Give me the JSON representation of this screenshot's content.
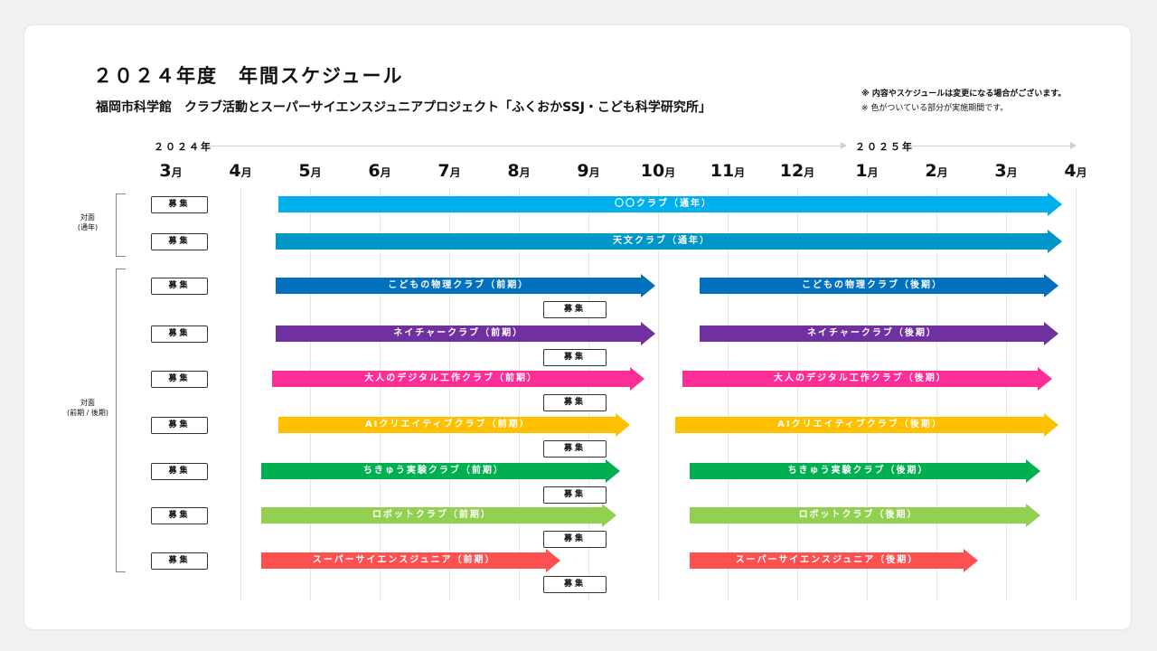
{
  "title": "２０２４年度　年間スケジュール",
  "subtitle": "福岡市科学館　クラブ活動とスーパーサイエンスジュニアプロジェクト「ふくおかSSJ・こども科学研究所」",
  "notes": [
    "※ 内容やスケジュールは変更になる場合がございます。",
    "※ 色がついている部分が実施期間です。"
  ],
  "years": [
    "２０２４年",
    "２０２５年"
  ],
  "months": [
    {
      "num": "3",
      "unit": "月"
    },
    {
      "num": "4",
      "unit": "月"
    },
    {
      "num": "5",
      "unit": "月"
    },
    {
      "num": "6",
      "unit": "月"
    },
    {
      "num": "7",
      "unit": "月"
    },
    {
      "num": "8",
      "unit": "月"
    },
    {
      "num": "9",
      "unit": "月"
    },
    {
      "num": "10",
      "unit": "月"
    },
    {
      "num": "11",
      "unit": "月"
    },
    {
      "num": "12",
      "unit": "月"
    },
    {
      "num": "1",
      "unit": "月"
    },
    {
      "num": "2",
      "unit": "月"
    },
    {
      "num": "3",
      "unit": "月"
    },
    {
      "num": "4",
      "unit": "月"
    }
  ],
  "groups": [
    {
      "label": [
        "対面",
        "(通年)"
      ]
    },
    {
      "label": [
        "対面",
        "(前期 / 後期)"
      ]
    }
  ],
  "recruit_label": "募集",
  "rows": [
    {
      "name": "yearround-club",
      "color": "#00b0ec",
      "bars": [
        {
          "label": "〇〇クラブ（通年）",
          "start": 4.55,
          "end": 15.8
        }
      ],
      "mid_recruit": false
    },
    {
      "name": "astronomy-club",
      "color": "#0096c8",
      "bars": [
        {
          "label": "天文クラブ（通年）",
          "start": 4.5,
          "end": 15.8
        }
      ],
      "mid_recruit": false
    },
    {
      "name": "physics-club",
      "color": "#0070bf",
      "bars": [
        {
          "label": "こどもの物理クラブ（前期）",
          "start": 4.5,
          "end": 9.96
        },
        {
          "label": "こどもの物理クラブ（後期）",
          "start": 10.6,
          "end": 15.75
        }
      ],
      "mid_recruit": true
    },
    {
      "name": "nature-club",
      "color": "#7030a0",
      "bars": [
        {
          "label": "ネイチャークラブ（前期）",
          "start": 4.5,
          "end": 9.96
        },
        {
          "label": "ネイチャークラブ（後期）",
          "start": 10.6,
          "end": 15.75
        }
      ],
      "mid_recruit": true
    },
    {
      "name": "digital-craft-club",
      "color": "#ff2d96",
      "bars": [
        {
          "label": "大人のデジタル工作クラブ（前期）",
          "start": 4.45,
          "end": 9.8
        },
        {
          "label": "大人のデジタル工作クラブ（後期）",
          "start": 10.35,
          "end": 15.66
        }
      ],
      "mid_recruit": true
    },
    {
      "name": "ai-creative-club",
      "color": "#ffc000",
      "bars": [
        {
          "label": "AIクリエイティブクラブ（前期）",
          "start": 4.55,
          "end": 9.6
        },
        {
          "label": "AIクリエイティブクラブ（後期）",
          "start": 10.25,
          "end": 15.75
        }
      ],
      "mid_recruit": true
    },
    {
      "name": "earth-experiment-club",
      "color": "#00b050",
      "bars": [
        {
          "label": "ちきゅう実験クラブ（前期）",
          "start": 4.3,
          "end": 9.45
        },
        {
          "label": "ちきゅう実験クラブ（後期）",
          "start": 10.45,
          "end": 15.5
        }
      ],
      "mid_recruit": true
    },
    {
      "name": "robot-club",
      "color": "#92d050",
      "bars": [
        {
          "label": "ロボットクラブ（前期）",
          "start": 4.3,
          "end": 9.4
        },
        {
          "label": "ロボットクラブ（後期）",
          "start": 10.45,
          "end": 15.5
        }
      ],
      "mid_recruit": true
    },
    {
      "name": "super-science-junior",
      "color": "#ff5050",
      "bars": [
        {
          "label": "スーパーサイエンスジュニア（前期）",
          "start": 4.3,
          "end": 8.6
        },
        {
          "label": "スーパーサイエンスジュニア（後期）",
          "start": 10.45,
          "end": 14.6
        }
      ],
      "mid_recruit": true
    }
  ]
}
